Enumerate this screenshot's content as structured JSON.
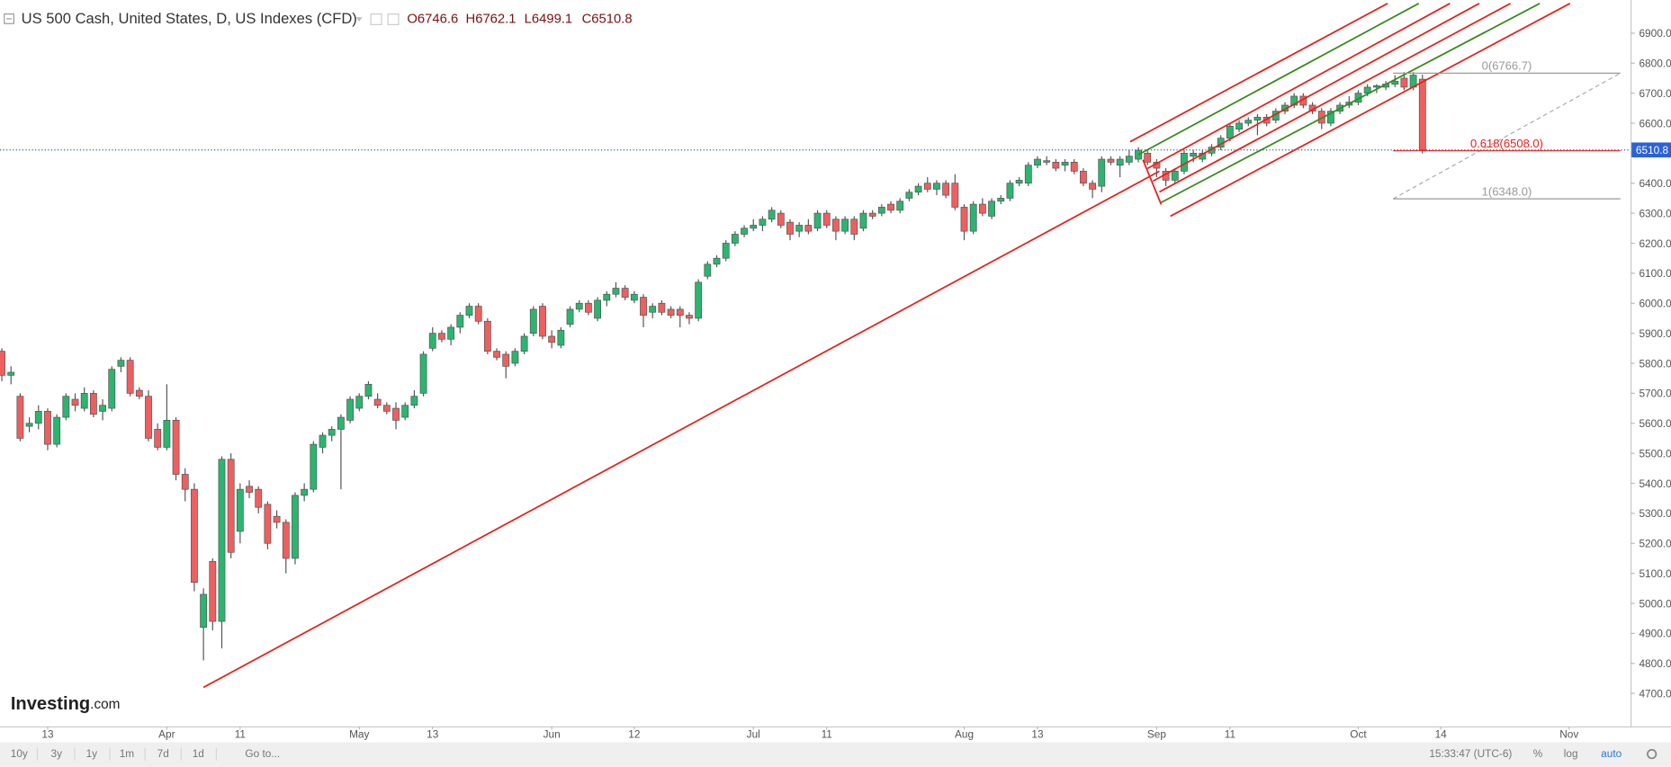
{
  "chart_data": {
    "type": "candlestick",
    "title": "US 500 Cash, United States, D, US Indexes (CFD)",
    "ohlc_header": [
      "O6746.6",
      "H6762.1",
      "L6499.1",
      "C6510.8"
    ],
    "up_color": "#2bb56f",
    "down_color": "#ef5f5f",
    "xlim": [
      -0.2,
      177.7
    ],
    "ylim": [
      4590,
      7010
    ],
    "grid": false,
    "yticks": [
      {
        "value": 4700,
        "label": "4700.0"
      },
      {
        "value": 4800,
        "label": "4800.0"
      },
      {
        "value": 4900,
        "label": "4900.0"
      },
      {
        "value": 5000,
        "label": "5000.0"
      },
      {
        "value": 5100,
        "label": "5100.0"
      },
      {
        "value": 5200,
        "label": "5200.0"
      },
      {
        "value": 5300,
        "label": "5300.0"
      },
      {
        "value": 5400,
        "label": "5400.0"
      },
      {
        "value": 5500,
        "label": "5500.0"
      },
      {
        "value": 5600,
        "label": "5600.0"
      },
      {
        "value": 5700,
        "label": "5700.0"
      },
      {
        "value": 5800,
        "label": "5800.0"
      },
      {
        "value": 5900,
        "label": "5900.0"
      },
      {
        "value": 6000,
        "label": "6000.0"
      },
      {
        "value": 6100,
        "label": "6100.0"
      },
      {
        "value": 6200,
        "label": "6200.0"
      },
      {
        "value": 6300,
        "label": "6300.0"
      },
      {
        "value": 6400,
        "label": "6400.0"
      },
      {
        "value": 6500,
        "label": "6500.0"
      },
      {
        "value": 6600,
        "label": "6600.0"
      },
      {
        "value": 6700,
        "label": "6700.0"
      },
      {
        "value": 6800,
        "label": "6800.0"
      },
      {
        "value": 6900,
        "label": "6900.0"
      }
    ],
    "xticks": [
      {
        "value": 5,
        "label": "13"
      },
      {
        "value": 18,
        "label": "Apr"
      },
      {
        "value": 26,
        "label": "11"
      },
      {
        "value": 39,
        "label": "May"
      },
      {
        "value": 47,
        "label": "13"
      },
      {
        "value": 60,
        "label": "Jun"
      },
      {
        "value": 69,
        "label": "12"
      },
      {
        "value": 82,
        "label": "Jul"
      },
      {
        "value": 90,
        "label": "11"
      },
      {
        "value": 105,
        "label": "Aug"
      },
      {
        "value": 113,
        "label": "13"
      },
      {
        "value": 126,
        "label": "Sep"
      },
      {
        "value": 134,
        "label": "11"
      },
      {
        "value": 148,
        "label": "Oct"
      },
      {
        "value": 157,
        "label": "14"
      },
      {
        "value": 171,
        "label": "Nov"
      }
    ],
    "last_price": 6510.8,
    "ohlc": [
      [
        5840,
        5850,
        5740,
        5760
      ],
      [
        5760,
        5790,
        5730,
        5770
      ],
      [
        5690,
        5700,
        5540,
        5550
      ],
      [
        5590,
        5620,
        5570,
        5600
      ],
      [
        5600,
        5660,
        5580,
        5640
      ],
      [
        5640,
        5650,
        5510,
        5530
      ],
      [
        5530,
        5630,
        5520,
        5620
      ],
      [
        5620,
        5700,
        5610,
        5690
      ],
      [
        5680,
        5700,
        5640,
        5660
      ],
      [
        5650,
        5720,
        5640,
        5700
      ],
      [
        5700,
        5710,
        5620,
        5630
      ],
      [
        5640,
        5680,
        5610,
        5660
      ],
      [
        5650,
        5790,
        5640,
        5780
      ],
      [
        5790,
        5820,
        5770,
        5810
      ],
      [
        5810,
        5820,
        5690,
        5700
      ],
      [
        5710,
        5720,
        5680,
        5690
      ],
      [
        5690,
        5710,
        5540,
        5550
      ],
      [
        5580,
        5600,
        5510,
        5520
      ],
      [
        5520,
        5730,
        5510,
        5610
      ],
      [
        5610,
        5620,
        5410,
        5430
      ],
      [
        5430,
        5450,
        5340,
        5380
      ],
      [
        5380,
        5400,
        5040,
        5070
      ],
      [
        4920,
        5050,
        4810,
        5030
      ],
      [
        5140,
        5150,
        4910,
        4940
      ],
      [
        4940,
        5490,
        4850,
        5480
      ],
      [
        5480,
        5500,
        5150,
        5170
      ],
      [
        5240,
        5400,
        5200,
        5380
      ],
      [
        5390,
        5410,
        5350,
        5370
      ],
      [
        5380,
        5390,
        5300,
        5320
      ],
      [
        5330,
        5340,
        5180,
        5200
      ],
      [
        5290,
        5310,
        5250,
        5270
      ],
      [
        5270,
        5280,
        5100,
        5150
      ],
      [
        5150,
        5370,
        5130,
        5360
      ],
      [
        5360,
        5400,
        5340,
        5380
      ],
      [
        5380,
        5540,
        5370,
        5530
      ],
      [
        5520,
        5570,
        5500,
        5560
      ],
      [
        5560,
        5590,
        5540,
        5580
      ],
      [
        5580,
        5630,
        5380,
        5620
      ],
      [
        5610,
        5690,
        5600,
        5680
      ],
      [
        5650,
        5700,
        5640,
        5690
      ],
      [
        5690,
        5740,
        5680,
        5730
      ],
      [
        5680,
        5700,
        5650,
        5660
      ],
      [
        5660,
        5670,
        5630,
        5640
      ],
      [
        5650,
        5670,
        5580,
        5610
      ],
      [
        5620,
        5670,
        5610,
        5660
      ],
      [
        5660,
        5710,
        5650,
        5690
      ],
      [
        5700,
        5840,
        5690,
        5830
      ],
      [
        5850,
        5920,
        5840,
        5900
      ],
      [
        5900,
        5910,
        5870,
        5880
      ],
      [
        5880,
        5930,
        5860,
        5920
      ],
      [
        5920,
        5970,
        5900,
        5960
      ],
      [
        5960,
        6000,
        5950,
        5990
      ],
      [
        5990,
        6000,
        5930,
        5940
      ],
      [
        5940,
        5950,
        5830,
        5840
      ],
      [
        5840,
        5850,
        5810,
        5820
      ],
      [
        5830,
        5840,
        5750,
        5790
      ],
      [
        5800,
        5850,
        5790,
        5840
      ],
      [
        5840,
        5900,
        5830,
        5890
      ],
      [
        5900,
        5990,
        5890,
        5980
      ],
      [
        5990,
        6000,
        5880,
        5890
      ],
      [
        5890,
        5910,
        5850,
        5870
      ],
      [
        5860,
        5920,
        5850,
        5910
      ],
      [
        5930,
        5990,
        5920,
        5980
      ],
      [
        5980,
        6010,
        5970,
        6000
      ],
      [
        6000,
        6010,
        5960,
        5970
      ],
      [
        5950,
        6020,
        5940,
        6010
      ],
      [
        6010,
        6040,
        5990,
        6030
      ],
      [
        6030,
        6070,
        6020,
        6050
      ],
      [
        6050,
        6060,
        6010,
        6020
      ],
      [
        6010,
        6040,
        6000,
        6030
      ],
      [
        6020,
        6030,
        5920,
        5960
      ],
      [
        5970,
        6000,
        5950,
        5990
      ],
      [
        6000,
        6010,
        5960,
        5970
      ],
      [
        5980,
        5990,
        5950,
        5960
      ],
      [
        5980,
        5990,
        5920,
        5960
      ],
      [
        5960,
        5970,
        5930,
        5950
      ],
      [
        5950,
        6080,
        5940,
        6070
      ],
      [
        6090,
        6140,
        6080,
        6130
      ],
      [
        6130,
        6160,
        6120,
        6150
      ],
      [
        6150,
        6210,
        6140,
        6200
      ],
      [
        6200,
        6240,
        6190,
        6230
      ],
      [
        6230,
        6260,
        6220,
        6250
      ],
      [
        6250,
        6280,
        6240,
        6260
      ],
      [
        6260,
        6290,
        6240,
        6280
      ],
      [
        6280,
        6320,
        6270,
        6310
      ],
      [
        6300,
        6310,
        6250,
        6260
      ],
      [
        6270,
        6280,
        6210,
        6230
      ],
      [
        6240,
        6270,
        6220,
        6260
      ],
      [
        6260,
        6280,
        6230,
        6240
      ],
      [
        6250,
        6310,
        6240,
        6300
      ],
      [
        6300,
        6310,
        6250,
        6260
      ],
      [
        6280,
        6290,
        6210,
        6240
      ],
      [
        6240,
        6290,
        6230,
        6280
      ],
      [
        6280,
        6290,
        6210,
        6230
      ],
      [
        6250,
        6310,
        6240,
        6300
      ],
      [
        6300,
        6310,
        6280,
        6290
      ],
      [
        6300,
        6330,
        6290,
        6320
      ],
      [
        6330,
        6340,
        6300,
        6310
      ],
      [
        6310,
        6350,
        6300,
        6340
      ],
      [
        6350,
        6380,
        6340,
        6370
      ],
      [
        6370,
        6400,
        6360,
        6390
      ],
      [
        6400,
        6420,
        6370,
        6380
      ],
      [
        6380,
        6410,
        6360,
        6400
      ],
      [
        6400,
        6410,
        6350,
        6360
      ],
      [
        6400,
        6430,
        6310,
        6320
      ],
      [
        6320,
        6330,
        6210,
        6240
      ],
      [
        6240,
        6340,
        6230,
        6330
      ],
      [
        6330,
        6350,
        6290,
        6300
      ],
      [
        6290,
        6350,
        6280,
        6340
      ],
      [
        6340,
        6360,
        6330,
        6350
      ],
      [
        6350,
        6410,
        6340,
        6400
      ],
      [
        6400,
        6420,
        6390,
        6410
      ],
      [
        6400,
        6470,
        6390,
        6460
      ],
      [
        6460,
        6490,
        6450,
        6480
      ],
      [
        6470,
        6490,
        6460,
        6475
      ],
      [
        6470,
        6480,
        6440,
        6450
      ],
      [
        6460,
        6480,
        6440,
        6470
      ],
      [
        6470,
        6480,
        6430,
        6440
      ],
      [
        6440,
        6450,
        6390,
        6400
      ],
      [
        6400,
        6410,
        6350,
        6380
      ],
      [
        6390,
        6490,
        6370,
        6480
      ],
      [
        6480,
        6490,
        6460,
        6470
      ],
      [
        6460,
        6490,
        6420,
        6480
      ],
      [
        6470,
        6510,
        6460,
        6490
      ],
      [
        6480,
        6520,
        6470,
        6510
      ],
      [
        6500,
        6510,
        6460,
        6470
      ],
      [
        6470,
        6480,
        6420,
        6450
      ],
      [
        6440,
        6450,
        6390,
        6410
      ],
      [
        6410,
        6450,
        6400,
        6440
      ],
      [
        6440,
        6510,
        6430,
        6500
      ],
      [
        6490,
        6510,
        6470,
        6500
      ],
      [
        6480,
        6510,
        6470,
        6500
      ],
      [
        6500,
        6530,
        6490,
        6520
      ],
      [
        6520,
        6560,
        6510,
        6550
      ],
      [
        6550,
        6600,
        6540,
        6590
      ],
      [
        6580,
        6610,
        6570,
        6600
      ],
      [
        6600,
        6620,
        6590,
        6610
      ],
      [
        6610,
        6630,
        6560,
        6620
      ],
      [
        6620,
        6630,
        6590,
        6600
      ],
      [
        6610,
        6650,
        6600,
        6640
      ],
      [
        6640,
        6670,
        6630,
        6660
      ],
      [
        6660,
        6700,
        6650,
        6690
      ],
      [
        6690,
        6700,
        6650,
        6660
      ],
      [
        6660,
        6670,
        6630,
        6640
      ],
      [
        6640,
        6650,
        6580,
        6600
      ],
      [
        6600,
        6650,
        6590,
        6640
      ],
      [
        6640,
        6670,
        6630,
        6660
      ],
      [
        6660,
        6690,
        6650,
        6670
      ],
      [
        6670,
        6710,
        6660,
        6700
      ],
      [
        6700,
        6730,
        6690,
        6720
      ],
      [
        6720,
        6730,
        6700,
        6725
      ],
      [
        6720,
        6740,
        6710,
        6730
      ],
      [
        6730,
        6760,
        6720,
        6740
      ],
      [
        6750,
        6770,
        6710,
        6720
      ],
      [
        6720,
        6770,
        6710,
        6760
      ],
      [
        6746.6,
        6762.1,
        6499.1,
        6510.8
      ]
    ],
    "trendlines": [
      {
        "color": "#e8211c",
        "points": [
          [
            22,
            4720
          ],
          [
            126.3,
            6440
          ]
        ]
      },
      {
        "color": "#e8211c",
        "points": [
          [
            124.5,
            6478
          ],
          [
            126.5,
            6329
          ]
        ]
      },
      {
        "color": "#e8211c",
        "points": [
          [
            123.1,
            6538
          ],
          [
            151.2,
            6999
          ]
        ]
      },
      {
        "color": "#3a8a1e",
        "points": [
          [
            124.0,
            6495
          ],
          [
            154.6,
            6999
          ]
        ]
      },
      {
        "color": "#e8211c",
        "points": [
          [
            125.0,
            6449
          ],
          [
            158.0,
            6999
          ]
        ]
      },
      {
        "color": "#e8211c",
        "points": [
          [
            125.6,
            6407
          ],
          [
            161.2,
            6999
          ]
        ]
      },
      {
        "color": "#e8211c",
        "points": [
          [
            126.3,
            6371
          ],
          [
            164.6,
            6999
          ]
        ]
      },
      {
        "color": "#3a8a1e",
        "points": [
          [
            126.5,
            6336
          ],
          [
            167.8,
            6999
          ]
        ]
      },
      {
        "color": "#e8211c",
        "points": [
          [
            127.5,
            6290
          ],
          [
            171.1,
            6999
          ]
        ]
      }
    ],
    "fib": {
      "range": [
        151.8,
        176.6
      ],
      "levels": [
        {
          "value": 6766.7,
          "label": "0(6766.7)",
          "color": "#9a9a9a"
        },
        {
          "value": 6508.0,
          "label": "0.618(6508.0)",
          "color": "#e8211c"
        },
        {
          "value": 6348.0,
          "label": "1(6348.0)",
          "color": "#9a9a9a"
        }
      ]
    }
  },
  "ui": {
    "logo": [
      "Investing",
      ".com"
    ],
    "toolbar": [
      "10y",
      "3y",
      "1y",
      "1m",
      "7d",
      "1d",
      "Go to..."
    ],
    "status": [
      "15:33:47 (UTC-6)",
      "%",
      "log",
      "auto"
    ]
  }
}
